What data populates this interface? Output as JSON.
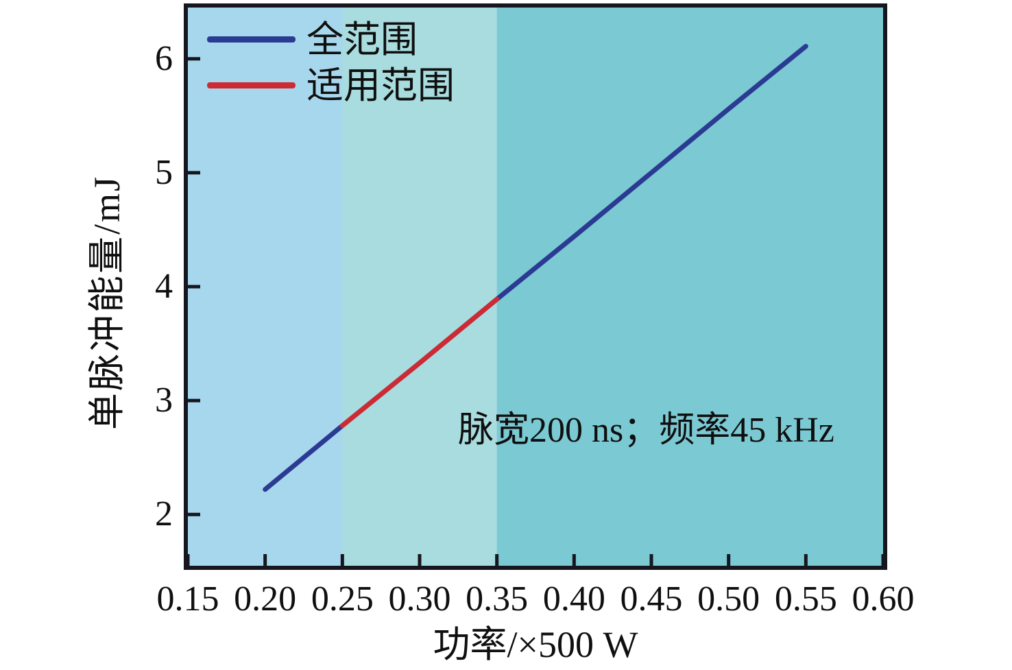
{
  "figure": {
    "background_color": "#ffffff",
    "frame_color": "#16161e",
    "text_color": "#0f0f0f"
  },
  "chart_data": {
    "type": "line",
    "title": "",
    "xlabel": "功率/×500 W",
    "ylabel": "单脉冲能量/mJ",
    "annotation": "脉宽200 ns；频率45 kHz",
    "xlim": [
      0.15,
      0.6
    ],
    "ylim": [
      1.55,
      6.45
    ],
    "xticks": [
      0.15,
      0.2,
      0.25,
      0.3,
      0.35,
      0.4,
      0.45,
      0.5,
      0.55,
      0.6
    ],
    "xtick_labels": [
      "0.15",
      "0.20",
      "0.25",
      "0.30",
      "0.35",
      "0.40",
      "0.45",
      "0.50",
      "0.55",
      "0.60"
    ],
    "yticks": [
      2,
      3,
      4,
      5,
      6
    ],
    "ytick_labels": [
      "2",
      "3",
      "4",
      "5",
      "6"
    ],
    "grid": false,
    "legend_position": "upper left inside",
    "background_bands": [
      {
        "name": "full-range-band",
        "from": 0.15,
        "to": 0.25,
        "color": "#a7d7ed"
      },
      {
        "name": "applicable-range-band",
        "from": 0.25,
        "to": 0.35,
        "color": "#a9dcdf"
      },
      {
        "name": "upper-range-band",
        "from": 0.35,
        "to": 0.6,
        "color": "#7bc9d3"
      }
    ],
    "series": [
      {
        "name": "全范围",
        "color": "#2b3a92",
        "x": [
          0.2,
          0.25,
          0.3,
          0.35,
          0.4,
          0.45,
          0.5,
          0.55
        ],
        "y": [
          2.22,
          2.78,
          3.33,
          3.89,
          4.44,
          5.0,
          5.56,
          6.11
        ]
      },
      {
        "name": "适用范围",
        "color": "#ce2a33",
        "x": [
          0.25,
          0.3,
          0.35
        ],
        "y": [
          2.78,
          3.33,
          3.89
        ]
      }
    ]
  }
}
